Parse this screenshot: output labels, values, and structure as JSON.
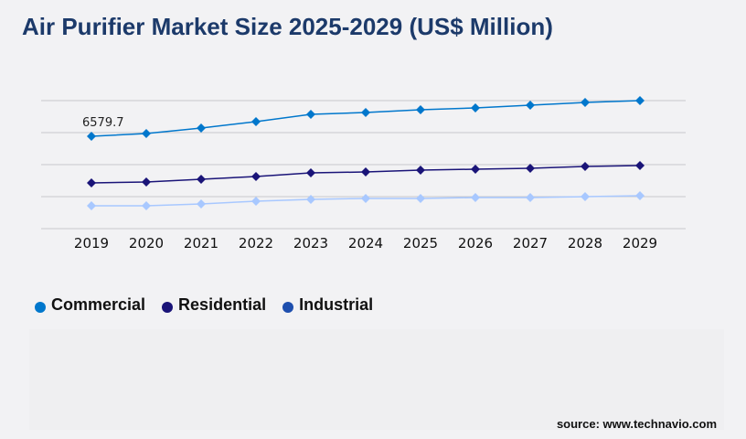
{
  "title": "Air Purifier Market Size 2025-2029 (US$ Million)",
  "source": "source: www.technavio.com",
  "chart_data": {
    "type": "line",
    "title": "Air Purifier Market Size 2025-2029 (US$ Million)",
    "x": [
      "2019",
      "2020",
      "2021",
      "2022",
      "2023",
      "2024",
      "2025",
      "2026",
      "2027",
      "2028",
      "2029"
    ],
    "ylim": [
      0,
      9120
    ],
    "grid": true,
    "legend": "bottom-left",
    "annotation": "6579.7",
    "series": [
      {
        "name": "Commercial",
        "color": "#0077cc",
        "marker_color": "#0077cc",
        "values": [
          6580,
          6775,
          7166,
          7622,
          8143,
          8274,
          8469,
          8600,
          8795,
          8990,
          9121
        ]
      },
      {
        "name": "Residential",
        "color": "#1a1478",
        "marker_color": "#1a1478",
        "values": [
          3258,
          3323,
          3518,
          3714,
          3974,
          4039,
          4170,
          4235,
          4300,
          4430,
          4495
        ]
      },
      {
        "name": "Industrial",
        "color": "#a8c8ff",
        "marker_color": "#1e4fae",
        "values": [
          1629,
          1629,
          1759,
          1955,
          2085,
          2150,
          2150,
          2215,
          2215,
          2280,
          2345
        ]
      }
    ]
  }
}
